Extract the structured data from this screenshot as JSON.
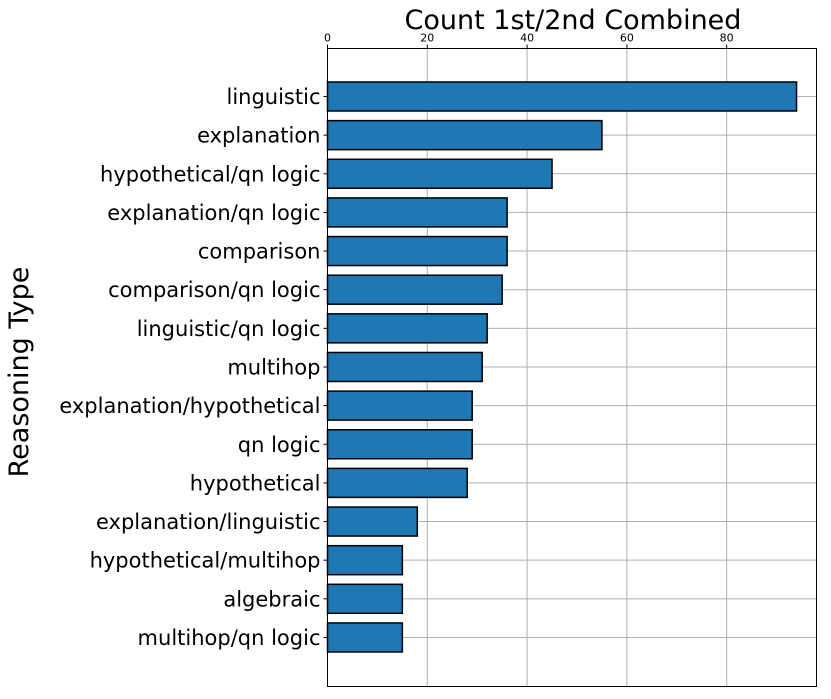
{
  "chart_data": {
    "type": "bar",
    "orientation": "horizontal",
    "title": "Count 1st/2nd Combined",
    "xlabel": "",
    "ylabel": "Reasoning Type",
    "categories": [
      "linguistic",
      "explanation",
      "hypothetical/qn logic",
      "explanation/qn logic",
      "comparison",
      "comparison/qn logic",
      "linguistic/qn logic",
      "multihop",
      "explanation/hypothetical",
      "qn logic",
      "hypothetical",
      "explanation/linguistic",
      "hypothetical/multihop",
      "algebraic",
      "multihop/qn logic"
    ],
    "values": [
      94,
      55,
      45,
      36,
      36,
      35,
      32,
      31,
      29,
      29,
      28,
      18,
      15,
      15,
      15
    ],
    "xlim": [
      0,
      98
    ],
    "xticks": [
      0,
      20,
      40,
      60,
      80
    ],
    "x_axis_position": "top",
    "grid": true,
    "bar_color": "#1f77b4",
    "bar_edge_color": "#000000",
    "grid_color": "#b0b0b0"
  }
}
